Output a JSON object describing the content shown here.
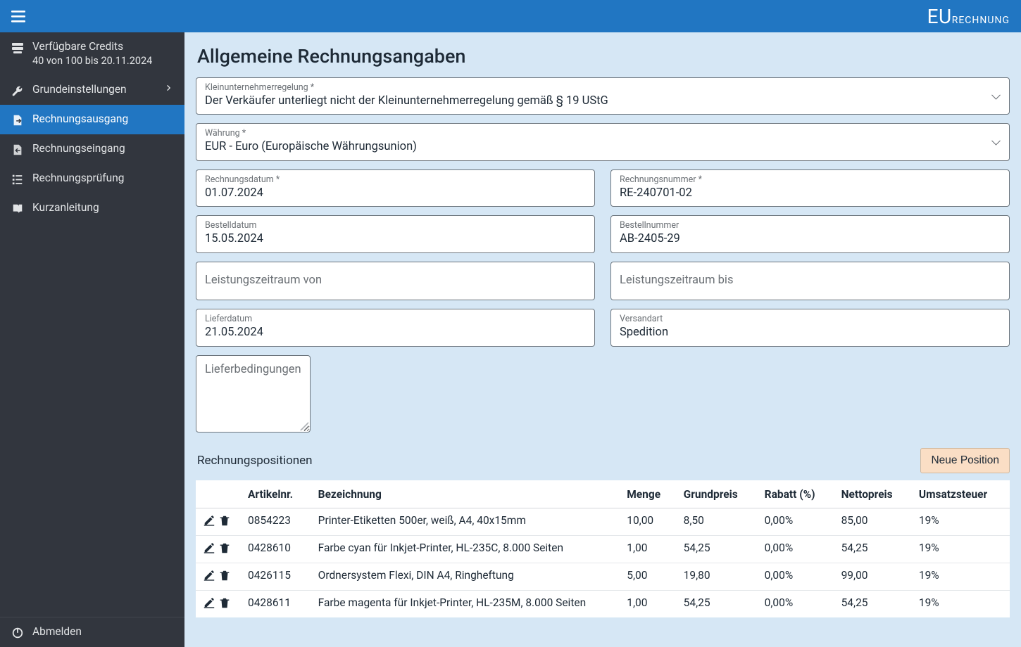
{
  "brand": {
    "eu": "EU",
    "rest": "RECHNUNG"
  },
  "sidebar": {
    "credits": {
      "title": "Verfügbare Credits",
      "subtitle": "40 von 100 bis 20.11.2024"
    },
    "items": [
      {
        "key": "settings",
        "label": "Grundeinstellungen",
        "icon": "wrench",
        "chevron": true
      },
      {
        "key": "outgoing",
        "label": "Rechnungsausgang",
        "icon": "file-out",
        "active": true
      },
      {
        "key": "incoming",
        "label": "Rechnungseingang",
        "icon": "file-in"
      },
      {
        "key": "check",
        "label": "Rechnungsprüfung",
        "icon": "checklist"
      },
      {
        "key": "guide",
        "label": "Kurzanleitung",
        "icon": "book"
      }
    ],
    "logout": {
      "label": "Abmelden",
      "icon": "power"
    }
  },
  "page": {
    "title": "Allgemeine Rechnungsangaben",
    "fields": {
      "kleinunternehmer": {
        "label": "Kleinunternehmerregelung *",
        "value": "Der Verkäufer unterliegt nicht der Kleinunternehmerregelung gemäß § 19 UStG"
      },
      "currency": {
        "label": "Währung *",
        "value": "EUR - Euro (Europäische Währungsunion)"
      },
      "invoice_date": {
        "label": "Rechnungsdatum *",
        "value": "01.07.2024"
      },
      "invoice_number": {
        "label": "Rechnungsnummer *",
        "value": "RE-240701-02"
      },
      "order_date": {
        "label": "Bestelldatum",
        "value": "15.05.2024"
      },
      "order_number": {
        "label": "Bestellnummer",
        "value": "AB-2405-29"
      },
      "period_from": {
        "label": "Leistungszeitraum von",
        "value": ""
      },
      "period_to": {
        "label": "Leistungszeitraum bis",
        "value": ""
      },
      "delivery_date": {
        "label": "Lieferdatum",
        "value": "21.05.2024"
      },
      "shipping_method": {
        "label": "Versandart",
        "value": "Spedition"
      },
      "delivery_terms": {
        "label": "Lieferbedingungen",
        "value": ""
      }
    },
    "positions": {
      "title": "Rechnungspositionen",
      "new_button": "Neue Position",
      "columns": {
        "artnr": "Artikelnr.",
        "bez": "Bezeichnung",
        "menge": "Menge",
        "grundpreis": "Grundpreis",
        "rabatt": "Rabatt (%)",
        "netto": "Nettopreis",
        "ust": "Umsatzsteuer"
      },
      "rows": [
        {
          "artnr": "0854223",
          "bez": "Printer-Etiketten 500er, weiß, A4, 40x15mm",
          "menge": "10,00",
          "grundpreis": "8,50",
          "rabatt": "0,00%",
          "netto": "85,00",
          "ust": "19%"
        },
        {
          "artnr": "0428610",
          "bez": "Farbe cyan für Inkjet-Printer, HL-235C, 8.000 Seiten",
          "menge": "1,00",
          "grundpreis": "54,25",
          "rabatt": "0,00%",
          "netto": "54,25",
          "ust": "19%"
        },
        {
          "artnr": "0426115",
          "bez": "Ordnersystem Flexi, DIN A4, Ringheftung",
          "menge": "5,00",
          "grundpreis": "19,80",
          "rabatt": "0,00%",
          "netto": "99,00",
          "ust": "19%"
        },
        {
          "artnr": "0428611",
          "bez": "Farbe magenta für Inkjet-Printer, HL-235M, 8.000 Seiten",
          "menge": "1,00",
          "grundpreis": "54,25",
          "rabatt": "0,00%",
          "netto": "54,25",
          "ust": "19%"
        }
      ]
    }
  },
  "colors": {
    "topbar": "#2176c2",
    "sidebar": "#32363e",
    "main_bg": "#d6e7f5",
    "field_border": "#6c757d",
    "btn_new_bg": "#fadec5"
  }
}
